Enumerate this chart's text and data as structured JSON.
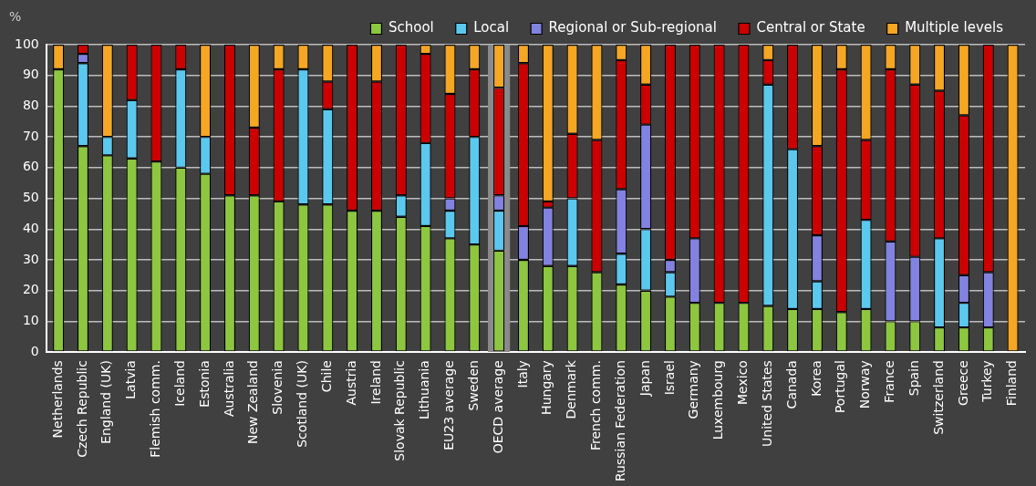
{
  "chart_data": {
    "type": "bar",
    "stacked": true,
    "ylabel": "%",
    "categories": [
      "Netherlands",
      "Czech Republic",
      "England (UK)",
      "Latvia",
      "Flemish comm.",
      "Iceland",
      "Estonia",
      "Australia",
      "New Zealand",
      "Slovenia",
      "Scotland (UK)",
      "Chile",
      "Austria",
      "Ireland",
      "Slovak Republic",
      "Lithuania",
      "EU23 average",
      "Sweden",
      "OECD average",
      "Italy",
      "Hungary",
      "Denmark",
      "French comm.",
      "Russian Federation",
      "Japan",
      "Israel",
      "Germany",
      "Luxembourg",
      "Mexico",
      "United States",
      "Canada",
      "Korea",
      "Portugal",
      "Norway",
      "France",
      "Spain",
      "Switzerland",
      "Greece",
      "Turkey",
      "Finland"
    ],
    "series": [
      {
        "name": "School",
        "color": "#8dc63f",
        "values": [
          92,
          67,
          64,
          63,
          62,
          60,
          58,
          51,
          51,
          49,
          48,
          48,
          46,
          46,
          44,
          41,
          37,
          35,
          33,
          30,
          28,
          28,
          26,
          22,
          20,
          18,
          16,
          16,
          16,
          15,
          14,
          14,
          13,
          14,
          10,
          10,
          8,
          8,
          8,
          null
        ]
      },
      {
        "name": "Local",
        "color": "#5bc8ee",
        "values": [
          null,
          27,
          6,
          19,
          null,
          32,
          12,
          null,
          null,
          null,
          44,
          31,
          null,
          null,
          7,
          27,
          9,
          35,
          13,
          null,
          null,
          22,
          null,
          10,
          20,
          8,
          null,
          null,
          null,
          72,
          52,
          9,
          null,
          29,
          null,
          null,
          29,
          8,
          null,
          null
        ]
      },
      {
        "name": "Regional or Sub-regional",
        "color": "#8282e0",
        "values": [
          null,
          3,
          null,
          null,
          null,
          null,
          null,
          null,
          null,
          null,
          null,
          null,
          null,
          null,
          null,
          null,
          4,
          null,
          5,
          11,
          19,
          null,
          null,
          21,
          34,
          4,
          21,
          null,
          null,
          null,
          null,
          15,
          null,
          null,
          26,
          21,
          null,
          9,
          18,
          null
        ]
      },
      {
        "name": "Central or State",
        "color": "#cc0000",
        "values": [
          null,
          3,
          null,
          18,
          38,
          8,
          null,
          49,
          22,
          43,
          null,
          9,
          54,
          42,
          49,
          29,
          34,
          22,
          35,
          53,
          2,
          21,
          43,
          42,
          13,
          70,
          63,
          84,
          84,
          8,
          34,
          29,
          79,
          26,
          56,
          56,
          48,
          52,
          74,
          null
        ]
      },
      {
        "name": "Multiple levels",
        "color": "#f5a623",
        "values": [
          8,
          null,
          30,
          null,
          null,
          null,
          30,
          null,
          27,
          8,
          8,
          12,
          null,
          12,
          null,
          3,
          16,
          8,
          14,
          6,
          51,
          29,
          31,
          5,
          13,
          null,
          null,
          null,
          null,
          5,
          null,
          33,
          8,
          31,
          8,
          13,
          15,
          23,
          null,
          100
        ]
      }
    ],
    "bands": [
      {
        "axis": "x",
        "from": "OECD average",
        "to": "OECD average",
        "color": "#8a8a8a"
      }
    ],
    "ylim": [
      0,
      100
    ],
    "yticks": [
      0,
      10,
      20,
      30,
      40,
      50,
      60,
      70,
      80,
      90,
      100
    ],
    "grid": "y",
    "legend": "top"
  }
}
